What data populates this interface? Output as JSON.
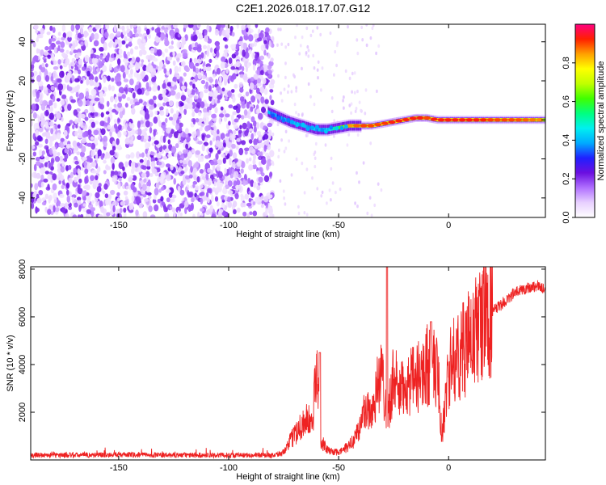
{
  "figure": {
    "title": "C2E1.2026.018.17.07.G12"
  },
  "chart_data": [
    {
      "type": "heatmap",
      "xlabel": "Height of straight line (km)",
      "ylabel": "Frequency (Hz)",
      "xlim": [
        -190,
        44
      ],
      "ylim": [
        -50,
        49
      ],
      "xticks": [
        -150,
        -100,
        -50,
        0
      ],
      "yticks": [
        -40,
        -20,
        0,
        20,
        40
      ],
      "colorbar": {
        "label": "Normalized spectral amplitude",
        "range": [
          0.0,
          1.0
        ],
        "ticks": [
          0.0,
          0.2,
          0.4,
          0.6,
          0.8
        ],
        "colors": [
          "#ffffff",
          "#e8d0ff",
          "#b070ff",
          "#6b0fe0",
          "#2020ff",
          "#00aaff",
          "#00f0f0",
          "#00ff80",
          "#40ff00",
          "#c0ff00",
          "#ffff00",
          "#ffa000",
          "#ff2000",
          "#ff0080"
        ]
      },
      "ridge": {
        "x": [
          -82,
          -78,
          -72,
          -66,
          -60,
          -55,
          -50,
          -45,
          -40,
          -35,
          -30,
          -25,
          -20,
          -15,
          -10,
          -5,
          0,
          10,
          20,
          30,
          44
        ],
        "frequency": [
          4,
          2,
          -1,
          -3,
          -5,
          -5,
          -4,
          -3,
          -3,
          -3,
          -2,
          -1,
          0,
          1,
          1,
          0,
          0,
          0,
          0,
          0,
          0
        ],
        "amplitude": [
          0.45,
          0.4,
          0.45,
          0.5,
          0.45,
          0.5,
          0.7,
          0.85,
          0.9,
          0.9,
          0.9,
          0.95,
          0.95,
          0.95,
          0.9,
          0.95,
          0.95,
          0.95,
          0.9,
          0.9,
          0.85
        ]
      },
      "noise_region": {
        "x_range": [
          -190,
          -80
        ],
        "amplitude_range": [
          0.0,
          0.2
        ]
      }
    },
    {
      "type": "line",
      "xlabel": "Height of straight line (km)",
      "ylabel": "SNR (10 * v/v)",
      "xlim": [
        -190,
        44
      ],
      "ylim": [
        0,
        8100
      ],
      "xticks": [
        -150,
        -100,
        -50,
        0
      ],
      "yticks": [
        2000,
        4000,
        6000,
        8000
      ],
      "color": "#ee2222",
      "series": [
        {
          "x": [
            -190,
            -170,
            -150,
            -130,
            -110,
            -90,
            -80,
            -75,
            -70,
            -65,
            -62,
            -60,
            -58,
            -55,
            -50,
            -45,
            -40,
            -38,
            -35,
            -32,
            -30,
            -28,
            -25,
            -22,
            -20,
            -15,
            -10,
            -5,
            -3,
            0,
            5,
            10,
            15,
            20,
            25,
            30,
            35,
            40,
            44
          ],
          "y": [
            200,
            200,
            220,
            200,
            200,
            200,
            200,
            300,
            1100,
            1700,
            1500,
            3800,
            800,
            400,
            300,
            600,
            1400,
            2200,
            2000,
            3300,
            3500,
            1800,
            3500,
            2700,
            3200,
            3300,
            4000,
            3800,
            900,
            3800,
            4500,
            5000,
            5800,
            6200,
            6600,
            7000,
            7200,
            7300,
            7200
          ]
        }
      ],
      "spikes": [
        {
          "x": -58.5,
          "y": 4500
        },
        {
          "x": -28,
          "y": 8100
        },
        {
          "x": -8,
          "y": 5800
        }
      ]
    }
  ]
}
